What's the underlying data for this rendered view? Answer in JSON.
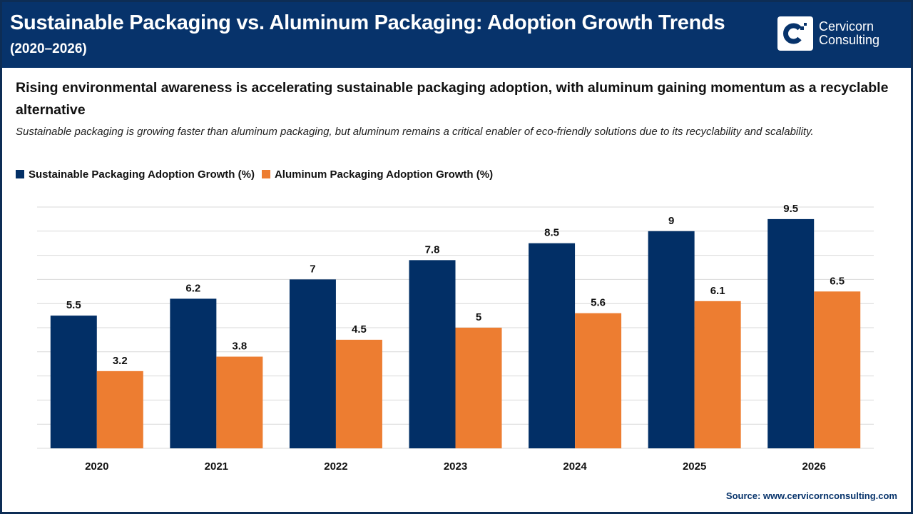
{
  "header": {
    "title": "Sustainable Packaging vs. Aluminum Packaging: Adoption Growth Trends",
    "subtitle": "(2020–2026)",
    "logo_text_line1": "Cervicorn",
    "logo_text_line2": "Consulting"
  },
  "headline": "Rising environmental awareness is accelerating sustainable packaging adoption, with aluminum gaining momentum as a recyclable alternative",
  "description": "Sustainable packaging is growing faster than aluminum packaging, but aluminum remains a critical enabler of eco-friendly solutions due to its recyclability and scalability.",
  "source": "Source: www.cervicornconsulting.com",
  "chart_data": {
    "type": "bar",
    "categories": [
      "2020",
      "2021",
      "2022",
      "2023",
      "2024",
      "2025",
      "2026"
    ],
    "series": [
      {
        "name": "Sustainable Packaging Adoption Growth (%)",
        "color": "#022f66",
        "values": [
          5.5,
          6.2,
          7,
          7.8,
          8.5,
          9,
          9.5
        ]
      },
      {
        "name": "Aluminum Packaging Adoption Growth (%)",
        "color": "#ed7d31",
        "values": [
          3.2,
          3.8,
          4.5,
          5,
          5.6,
          6.1,
          6.5
        ]
      }
    ],
    "ylim": [
      0,
      10
    ],
    "grid": true,
    "legend": "top-left",
    "data_labels": true
  }
}
